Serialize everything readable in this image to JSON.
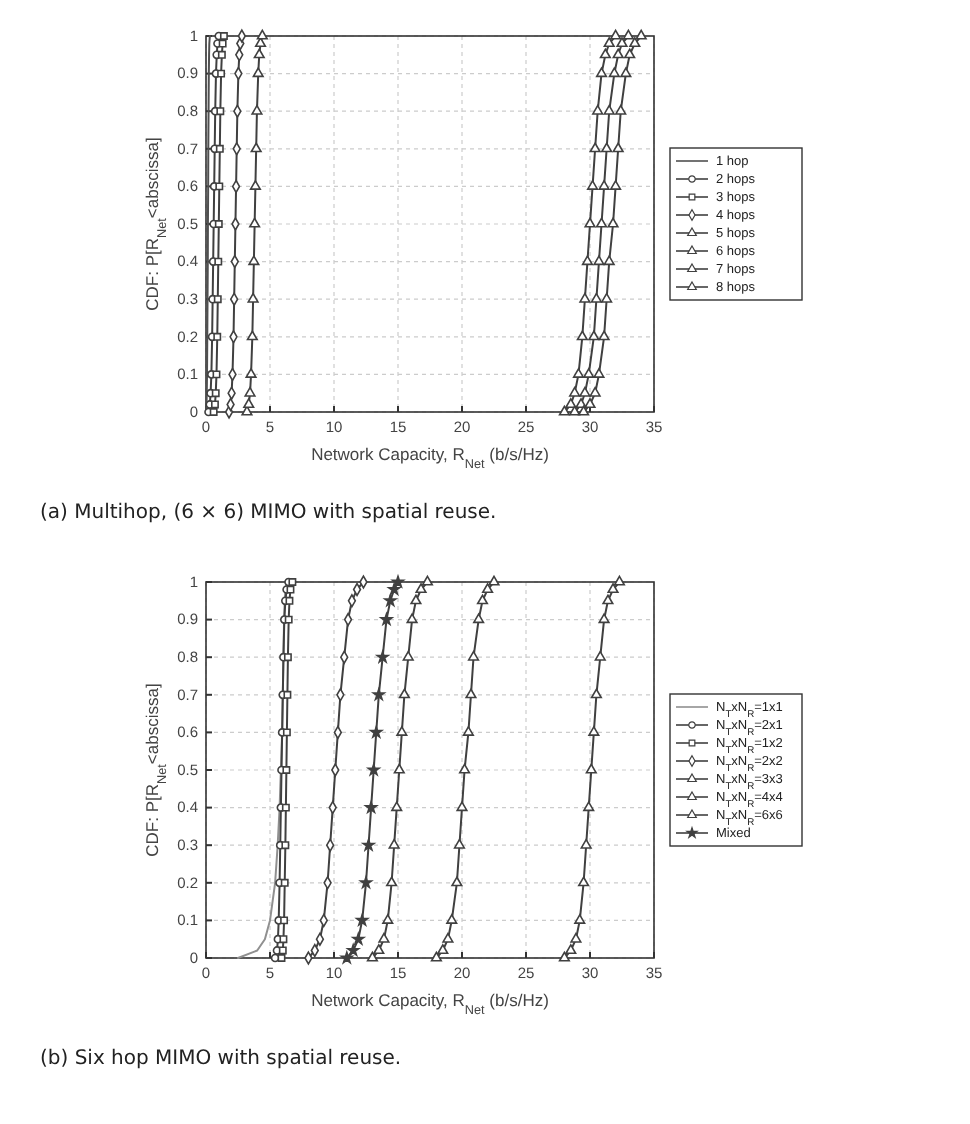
{
  "chart_data": [
    {
      "type": "line",
      "xlabel": "Network Capacity, R$_{Net}$ (b/s/Hz)",
      "ylabel": "CDF: P[R$_{Net}$<abscissa]",
      "xlim": [
        0,
        35
      ],
      "xticks": [
        0,
        5,
        10,
        15,
        20,
        25,
        30,
        35
      ],
      "ylim": [
        0,
        1
      ],
      "yticks": [
        0,
        0.1,
        0.2,
        0.3,
        0.4,
        0.5,
        0.6,
        0.7,
        0.8,
        0.9,
        1
      ],
      "grid": true,
      "legend": "right",
      "line_style": "solid",
      "annotations": [
        "(a) Multihop, (6 × 6) MIMO  with spatial reuse."
      ],
      "series": [
        {
          "name": "1 hop",
          "color": "#505050",
          "marker": "none",
          "x": [
            0,
            0.04,
            0.06,
            0.08,
            0.1,
            0.12,
            0.14,
            0.15,
            0.17,
            0.18,
            0.2,
            0.22,
            0.24,
            0.26,
            0.3
          ],
          "values": [
            0,
            0.02,
            0.05,
            0.1,
            0.2,
            0.3,
            0.4,
            0.5,
            0.6,
            0.7,
            0.8,
            0.9,
            0.95,
            0.98,
            1
          ]
        },
        {
          "name": "2 hops",
          "color": "#404040",
          "marker": "circle",
          "x": [
            0.2,
            0.3,
            0.36,
            0.42,
            0.48,
            0.52,
            0.56,
            0.6,
            0.64,
            0.68,
            0.72,
            0.78,
            0.84,
            0.9,
            1.0
          ],
          "values": [
            0,
            0.02,
            0.05,
            0.1,
            0.2,
            0.3,
            0.4,
            0.5,
            0.6,
            0.7,
            0.8,
            0.9,
            0.95,
            0.98,
            1
          ]
        },
        {
          "name": "3 hops",
          "color": "#404040",
          "marker": "square",
          "x": [
            0.6,
            0.7,
            0.76,
            0.82,
            0.88,
            0.92,
            0.96,
            1.0,
            1.04,
            1.08,
            1.12,
            1.18,
            1.24,
            1.3,
            1.4
          ],
          "values": [
            0,
            0.02,
            0.05,
            0.1,
            0.2,
            0.3,
            0.4,
            0.5,
            0.6,
            0.7,
            0.8,
            0.9,
            0.95,
            0.98,
            1
          ]
        },
        {
          "name": "4 hops",
          "color": "#404040",
          "marker": "diamond",
          "x": [
            1.8,
            1.92,
            2.0,
            2.07,
            2.15,
            2.2,
            2.25,
            2.3,
            2.35,
            2.4,
            2.45,
            2.53,
            2.6,
            2.68,
            2.8
          ],
          "values": [
            0,
            0.02,
            0.05,
            0.1,
            0.2,
            0.3,
            0.4,
            0.5,
            0.6,
            0.7,
            0.8,
            0.9,
            0.95,
            0.98,
            1
          ]
        },
        {
          "name": "5 hops",
          "color": "#404040",
          "marker": "triangle",
          "x": [
            3.2,
            3.34,
            3.44,
            3.52,
            3.62,
            3.68,
            3.74,
            3.8,
            3.86,
            3.92,
            3.98,
            4.08,
            4.16,
            4.26,
            4.4
          ],
          "values": [
            0,
            0.02,
            0.05,
            0.1,
            0.2,
            0.3,
            0.4,
            0.5,
            0.6,
            0.7,
            0.8,
            0.9,
            0.95,
            0.98,
            1
          ]
        },
        {
          "name": "6 hops",
          "color": "#404040",
          "marker": "triangle",
          "x": [
            28,
            28.5,
            28.8,
            29.1,
            29.4,
            29.6,
            29.8,
            30,
            30.2,
            30.4,
            30.6,
            30.9,
            31.2,
            31.5,
            32
          ],
          "values": [
            0,
            0.02,
            0.05,
            0.1,
            0.2,
            0.3,
            0.4,
            0.5,
            0.6,
            0.7,
            0.8,
            0.9,
            0.95,
            0.98,
            1
          ]
        },
        {
          "name": "7 hops",
          "color": "#404040",
          "marker": "triangle",
          "x": [
            28.8,
            29.3,
            29.6,
            29.9,
            30.3,
            30.5,
            30.7,
            30.9,
            31.1,
            31.3,
            31.5,
            31.9,
            32.2,
            32.5,
            33
          ],
          "values": [
            0,
            0.02,
            0.05,
            0.1,
            0.2,
            0.3,
            0.4,
            0.5,
            0.6,
            0.7,
            0.8,
            0.9,
            0.95,
            0.98,
            1
          ]
        },
        {
          "name": "8 hops",
          "color": "#404040",
          "marker": "triangle",
          "x": [
            29.5,
            30.0,
            30.4,
            30.7,
            31.1,
            31.3,
            31.5,
            31.8,
            32.0,
            32.2,
            32.4,
            32.8,
            33.1,
            33.5,
            34
          ],
          "values": [
            0,
            0.02,
            0.05,
            0.1,
            0.2,
            0.3,
            0.4,
            0.5,
            0.6,
            0.7,
            0.8,
            0.9,
            0.95,
            0.98,
            1
          ]
        }
      ]
    },
    {
      "type": "line",
      "xlabel": "Network Capacity, R$_{Net}$ (b/s/Hz)",
      "ylabel": "CDF: P[R$_{Net}$<abscissa]",
      "xlim": [
        0,
        35
      ],
      "xticks": [
        0,
        5,
        10,
        15,
        20,
        25,
        30,
        35
      ],
      "ylim": [
        0,
        1
      ],
      "yticks": [
        0,
        0.1,
        0.2,
        0.3,
        0.4,
        0.5,
        0.6,
        0.7,
        0.8,
        0.9,
        1
      ],
      "grid": true,
      "legend": "right",
      "line_style": "solid",
      "annotations": [
        "(b) Six  hop MIMO  with spatial reuse."
      ],
      "series": [
        {
          "name": "N$_{T}$xN$_{R}$=1x1",
          "color": "#909090",
          "marker": "none",
          "x": [
            2.5,
            4.0,
            4.6,
            5.0,
            5.4,
            5.6,
            5.75,
            5.85,
            5.95,
            6.0,
            6.05,
            6.1,
            6.15,
            6.2,
            6.3
          ],
          "values": [
            0,
            0.02,
            0.05,
            0.1,
            0.2,
            0.3,
            0.4,
            0.5,
            0.6,
            0.7,
            0.8,
            0.9,
            0.95,
            0.98,
            1
          ]
        },
        {
          "name": "N$_{T}$xN$_{R}$=2x1",
          "color": "#404040",
          "marker": "circle",
          "x": [
            5.4,
            5.55,
            5.62,
            5.68,
            5.75,
            5.8,
            5.85,
            5.9,
            5.95,
            6.0,
            6.05,
            6.12,
            6.2,
            6.3,
            6.45
          ],
          "values": [
            0,
            0.02,
            0.05,
            0.1,
            0.2,
            0.3,
            0.4,
            0.5,
            0.6,
            0.7,
            0.8,
            0.9,
            0.95,
            0.98,
            1
          ]
        },
        {
          "name": "N$_{T}$xN$_{R}$=1x2",
          "color": "#404040",
          "marker": "square",
          "x": [
            5.9,
            6.0,
            6.05,
            6.1,
            6.15,
            6.2,
            6.24,
            6.28,
            6.32,
            6.36,
            6.4,
            6.46,
            6.52,
            6.6,
            6.75
          ],
          "values": [
            0,
            0.02,
            0.05,
            0.1,
            0.2,
            0.3,
            0.4,
            0.5,
            0.6,
            0.7,
            0.8,
            0.9,
            0.95,
            0.98,
            1
          ]
        },
        {
          "name": "N$_{T}$xN$_{R}$=2x2",
          "color": "#404040",
          "marker": "diamond",
          "x": [
            8,
            8.5,
            8.9,
            9.2,
            9.5,
            9.7,
            9.9,
            10.1,
            10.3,
            10.5,
            10.8,
            11.1,
            11.4,
            11.8,
            12.3
          ],
          "values": [
            0,
            0.02,
            0.05,
            0.1,
            0.2,
            0.3,
            0.4,
            0.5,
            0.6,
            0.7,
            0.8,
            0.9,
            0.95,
            0.98,
            1
          ]
        },
        {
          "name": "N$_{T}$xN$_{R}$=3x3",
          "color": "#404040",
          "marker": "triangle",
          "x": [
            13,
            13.5,
            13.9,
            14.2,
            14.5,
            14.7,
            14.9,
            15.1,
            15.3,
            15.5,
            15.8,
            16.1,
            16.4,
            16.8,
            17.3
          ],
          "values": [
            0,
            0.02,
            0.05,
            0.1,
            0.2,
            0.3,
            0.4,
            0.5,
            0.6,
            0.7,
            0.8,
            0.9,
            0.95,
            0.98,
            1
          ]
        },
        {
          "name": "N$_{T}$xN$_{R}$=4x4",
          "color": "#404040",
          "marker": "triangle",
          "x": [
            18,
            18.5,
            18.9,
            19.2,
            19.6,
            19.8,
            20.0,
            20.2,
            20.5,
            20.7,
            20.9,
            21.3,
            21.6,
            22,
            22.5
          ],
          "values": [
            0,
            0.02,
            0.05,
            0.1,
            0.2,
            0.3,
            0.4,
            0.5,
            0.6,
            0.7,
            0.8,
            0.9,
            0.95,
            0.98,
            1
          ]
        },
        {
          "name": "N$_{T}$xN$_{R}$=6x6",
          "color": "#404040",
          "marker": "triangle",
          "x": [
            28,
            28.5,
            28.9,
            29.2,
            29.5,
            29.7,
            29.9,
            30.1,
            30.3,
            30.5,
            30.8,
            31.1,
            31.4,
            31.8,
            32.3
          ],
          "values": [
            0,
            0.02,
            0.05,
            0.1,
            0.2,
            0.3,
            0.4,
            0.5,
            0.6,
            0.7,
            0.8,
            0.9,
            0.95,
            0.98,
            1
          ]
        },
        {
          "name": "Mixed",
          "color": "#404040",
          "marker": "star",
          "x": [
            11,
            11.5,
            11.9,
            12.2,
            12.5,
            12.7,
            12.9,
            13.1,
            13.3,
            13.5,
            13.8,
            14.1,
            14.4,
            14.7,
            15
          ],
          "values": [
            0,
            0.02,
            0.05,
            0.1,
            0.2,
            0.3,
            0.4,
            0.5,
            0.6,
            0.7,
            0.8,
            0.9,
            0.95,
            0.98,
            1
          ]
        }
      ]
    }
  ]
}
